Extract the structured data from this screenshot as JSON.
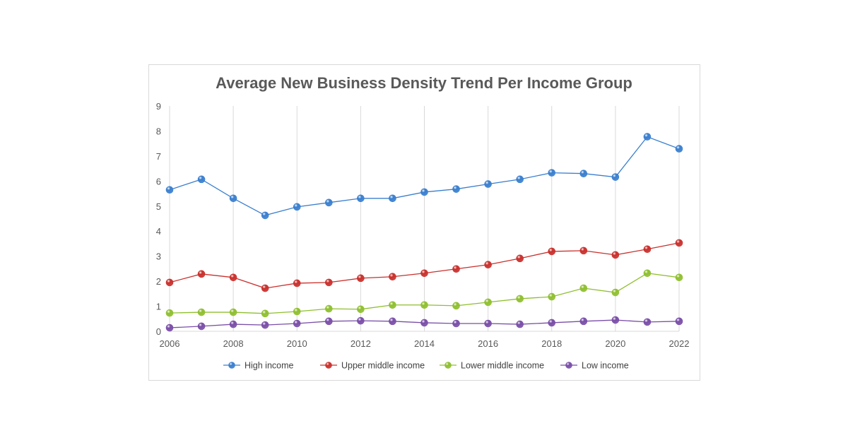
{
  "chart_data": {
    "type": "line",
    "title": "Average New Business Density Trend Per Income Group",
    "xlabel": "",
    "ylabel": "",
    "x": [
      2006,
      2007,
      2008,
      2009,
      2010,
      2011,
      2012,
      2013,
      2014,
      2015,
      2016,
      2017,
      2018,
      2019,
      2020,
      2021,
      2022
    ],
    "x_tick_labels": [
      "2006",
      "2008",
      "2010",
      "2012",
      "2014",
      "2016",
      "2018",
      "2020",
      "2022"
    ],
    "y_tick_labels": [
      "0",
      "1",
      "2",
      "3",
      "4",
      "5",
      "6",
      "7",
      "8",
      "9"
    ],
    "ylim": [
      0,
      9
    ],
    "grid": "vertical",
    "legend_position": "bottom",
    "series": [
      {
        "name": "High income",
        "color": "#3a7fcf",
        "values": [
          5.65,
          6.07,
          5.31,
          4.63,
          4.97,
          5.14,
          5.31,
          5.31,
          5.56,
          5.68,
          5.88,
          6.07,
          6.33,
          6.3,
          6.16,
          7.77,
          7.29
        ]
      },
      {
        "name": "Upper middle income",
        "color": "#c9302c",
        "values": [
          1.95,
          2.29,
          2.15,
          1.72,
          1.92,
          1.95,
          2.12,
          2.18,
          2.32,
          2.49,
          2.66,
          2.91,
          3.19,
          3.22,
          3.05,
          3.28,
          3.53
        ]
      },
      {
        "name": "Lower middle income",
        "color": "#8fbf2f",
        "values": [
          0.73,
          0.76,
          0.76,
          0.71,
          0.79,
          0.9,
          0.88,
          1.05,
          1.05,
          1.02,
          1.16,
          1.3,
          1.38,
          1.72,
          1.55,
          2.32,
          2.15
        ]
      },
      {
        "name": "Low income",
        "color": "#7a4ea8",
        "values": [
          0.14,
          0.2,
          0.28,
          0.25,
          0.31,
          0.4,
          0.42,
          0.4,
          0.34,
          0.31,
          0.31,
          0.28,
          0.34,
          0.4,
          0.45,
          0.37,
          0.4
        ]
      }
    ]
  }
}
